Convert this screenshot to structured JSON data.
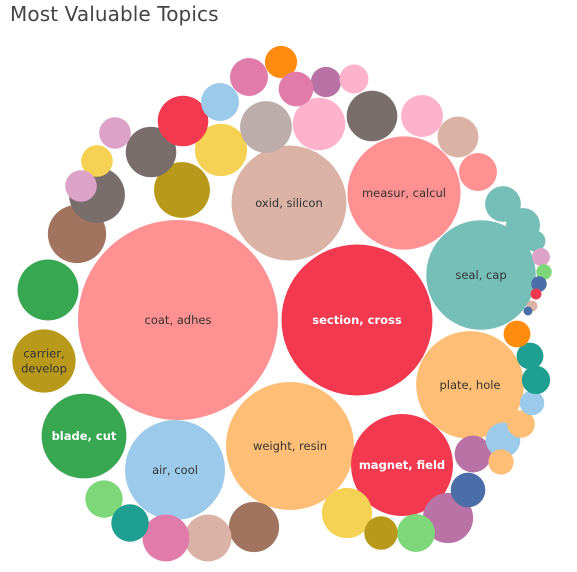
{
  "chart_data": {
    "type": "bubble",
    "title": "Most Valuable Topics",
    "bubbles": [
      {
        "label": "coat, adhes",
        "value": 100,
        "color": "#FF9193"
      },
      {
        "label": "section, cross",
        "value": 57,
        "color": "#F2394F"
      },
      {
        "label": "oxid, silicon",
        "value": 33,
        "color": "#DBB3A6"
      },
      {
        "label": "measur, calcul",
        "value": 32,
        "color": "#FF9193"
      },
      {
        "label": "seal, cap",
        "value": 30,
        "color": "#76BFB9"
      },
      {
        "label": "weight, resin",
        "value": 41,
        "color": "#FFBE76"
      },
      {
        "label": "plate, hole",
        "value": 29,
        "color": "#FFBE76"
      },
      {
        "label": "air, cool",
        "value": 25,
        "color": "#9CCAEA"
      },
      {
        "label": "magnet, field",
        "value": 26,
        "color": "#F2394F"
      },
      {
        "label": "blade, cut",
        "value": 18,
        "color": "#37A751"
      },
      {
        "label": "carrier, develop",
        "value": 10,
        "color": "#B8991A"
      },
      {
        "label": "",
        "value": 9.3,
        "color": "#37A751"
      },
      {
        "label": "",
        "value": 8.5,
        "color": "#A0745E"
      },
      {
        "label": "",
        "value": 7.8,
        "color": "#7A6E6C"
      },
      {
        "label": "",
        "value": 7.8,
        "color": "#B8991A"
      },
      {
        "label": "",
        "value": 6.8,
        "color": "#F5D253"
      },
      {
        "label": "",
        "value": 6.4,
        "color": "#7A6E6C"
      },
      {
        "label": "",
        "value": 6.4,
        "color": "#F2394F"
      },
      {
        "label": "",
        "value": 6.7,
        "color": "#BCACAA"
      },
      {
        "label": "",
        "value": 6.9,
        "color": "#FFB2CC"
      },
      {
        "label": "",
        "value": 6.4,
        "color": "#7A6E6C"
      },
      {
        "label": "",
        "value": 4.4,
        "color": "#FFB2CC"
      },
      {
        "label": "",
        "value": 4.2,
        "color": "#DBB3A6"
      },
      {
        "label": "",
        "value": 3.6,
        "color": "#FF9193"
      },
      {
        "label": "",
        "value": 3.2,
        "color": "#76BFB9"
      },
      {
        "label": "",
        "value": 3.6,
        "color": "#9CCAEA"
      },
      {
        "label": "",
        "value": 3.6,
        "color": "#E17CAA"
      },
      {
        "label": "",
        "value": 2.6,
        "color": "#FF8C0F"
      },
      {
        "label": "",
        "value": 2.3,
        "color": "#B972A5"
      },
      {
        "label": "",
        "value": 2.1,
        "color": "#FFB2CC"
      },
      {
        "label": "",
        "value": 3.0,
        "color": "#E17CAA"
      },
      {
        "label": "",
        "value": 2.5,
        "color": "#DDA2C8"
      },
      {
        "label": "",
        "value": 2.5,
        "color": "#F5D253"
      },
      {
        "label": "",
        "value": 2.5,
        "color": "#DDA2C8"
      },
      {
        "label": "",
        "value": 6.3,
        "color": "#A0745E"
      },
      {
        "label": "",
        "value": 6.3,
        "color": "#F5D253"
      },
      {
        "label": "",
        "value": 6.3,
        "color": "#B972A5"
      },
      {
        "label": "",
        "value": 5.5,
        "color": "#DBB3A6"
      },
      {
        "label": "",
        "value": 5.5,
        "color": "#E17CAA"
      },
      {
        "label": "",
        "value": 3.5,
        "color": "#7ED87A"
      },
      {
        "label": "",
        "value": 3.5,
        "color": "#1F9F92"
      },
      {
        "label": "",
        "value": 3.6,
        "color": "#7ED87A"
      },
      {
        "label": "",
        "value": 2.8,
        "color": "#B8991A"
      },
      {
        "label": "",
        "value": 3.4,
        "color": "#B972A5"
      },
      {
        "label": "",
        "value": 3.0,
        "color": "#4B6EA8"
      },
      {
        "label": "",
        "value": 3.0,
        "color": "#9CCAEA"
      },
      {
        "label": "",
        "value": 1.6,
        "color": "#FFBE76"
      },
      {
        "label": "",
        "value": 1.9,
        "color": "#FFBE76"
      },
      {
        "label": "",
        "value": 1.5,
        "color": "#9CCAEA"
      },
      {
        "label": "",
        "value": 1.5,
        "color": "#A0745E"
      },
      {
        "label": "",
        "value": 1.8,
        "color": "#1F9F92"
      },
      {
        "label": "",
        "value": 1.8,
        "color": "#FF8C0F"
      },
      {
        "label": "",
        "value": 2.0,
        "color": "#1F9F92"
      },
      {
        "label": "",
        "value": 2.9,
        "color": "#76BFB9"
      },
      {
        "label": "",
        "value": 1.1,
        "color": "#76BFB9"
      },
      {
        "label": "",
        "value": 0.8,
        "color": "#DDA2C8"
      },
      {
        "label": "",
        "value": 0.6,
        "color": "#7ED87A"
      },
      {
        "label": "",
        "value": 0.6,
        "color": "#4B6EA8"
      },
      {
        "label": "",
        "value": 0.3,
        "color": "#F2394F"
      },
      {
        "label": "",
        "value": 0.3,
        "color": "#DBB3A6"
      },
      {
        "label": "",
        "value": 0.2,
        "color": "#4B6EA8"
      }
    ]
  },
  "colors": {
    "light_label_text": "#333333",
    "dark_label_text": "#ffffff"
  }
}
